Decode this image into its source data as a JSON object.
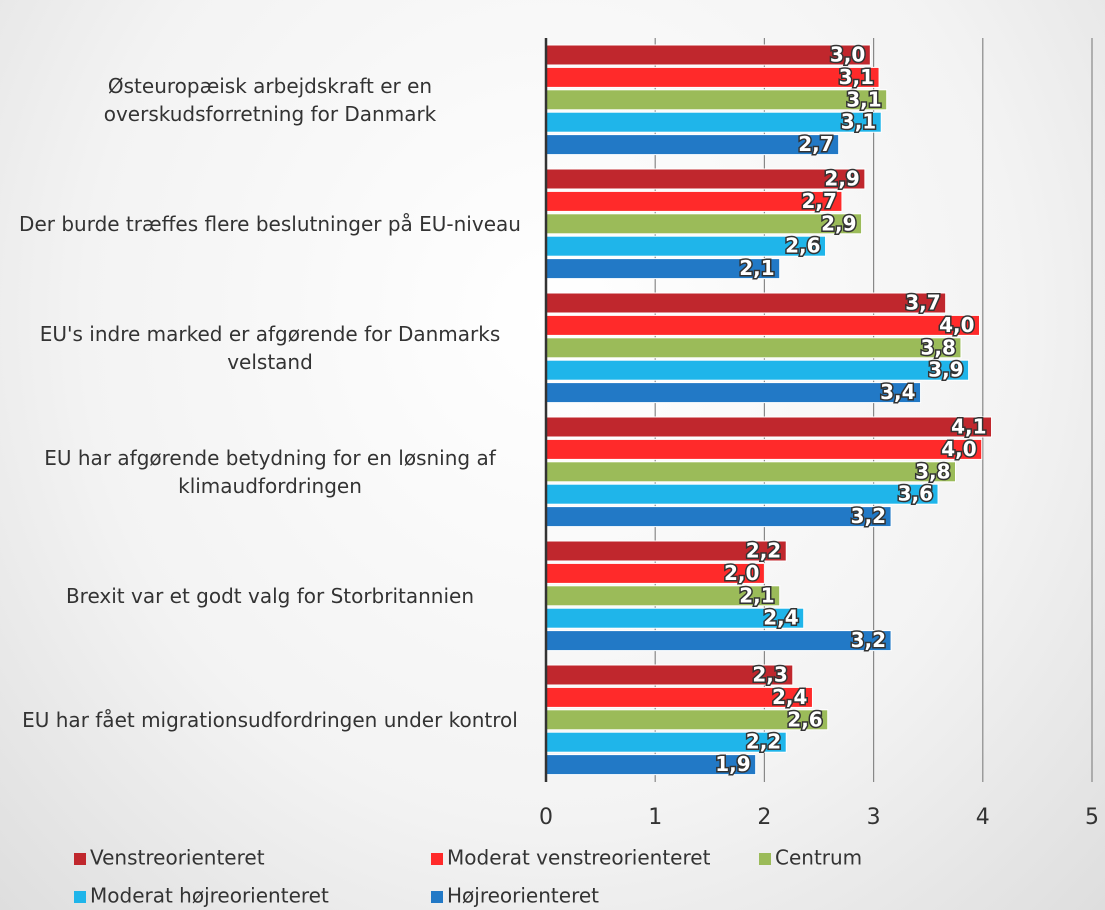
{
  "chart_data": {
    "type": "hbar",
    "categories": [
      "Østeuropæisk arbejdskraft er en overskudsforretning for Danmark",
      "Der burde træffes flere beslutninger på EU-niveau",
      "EU's indre marked er afgørende for Danmarks velstand",
      "EU har afgørende betydning for en løsning af klimaudfordringen",
      "Brexit var et godt valg for Storbritannien",
      "EU har fået migrationsudfordringen under kontrol"
    ],
    "series": [
      {
        "name": "Venstreorienteret",
        "color": "#c0272d",
        "values": [
          2.97,
          2.92,
          3.66,
          4.08,
          2.2,
          2.26
        ],
        "value_labels": [
          "3,0",
          "2,9",
          "3,7",
          "4,1",
          "2,2",
          "2,3"
        ]
      },
      {
        "name": "Moderat venstreorienteret",
        "color": "#ff2a2a",
        "values": [
          3.05,
          2.71,
          3.97,
          3.99,
          2.0,
          2.44
        ],
        "value_labels": [
          "3,1",
          "2,7",
          "4,0",
          "4,0",
          "2,0",
          "2,4"
        ]
      },
      {
        "name": "Centrum",
        "color": "#9bbb59",
        "values": [
          3.12,
          2.89,
          3.8,
          3.75,
          2.14,
          2.58
        ],
        "value_labels": [
          "3,1",
          "2,9",
          "3,8",
          "3,8",
          "2,1",
          "2,6"
        ]
      },
      {
        "name": "Moderat højreorienteret",
        "color": "#1fb5ea",
        "values": [
          3.07,
          2.56,
          3.87,
          3.59,
          2.36,
          2.2
        ],
        "value_labels": [
          "3,1",
          "2,6",
          "3,9",
          "3,6",
          "2,4",
          "2,2"
        ]
      },
      {
        "name": "Højreorienteret",
        "color": "#2279c6",
        "values": [
          2.68,
          2.14,
          3.43,
          3.16,
          3.16,
          1.92
        ],
        "value_labels": [
          "2,7",
          "2,1",
          "3,4",
          "3,2",
          "3,2",
          "1,9"
        ]
      }
    ],
    "xlim": [
      0,
      5
    ],
    "xticks": [
      0,
      1,
      2,
      3,
      4,
      5
    ],
    "grid": true,
    "legend": "bottom"
  }
}
